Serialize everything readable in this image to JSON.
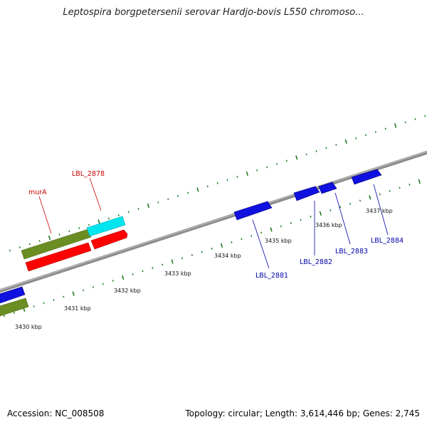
{
  "title": "Leptospira borgpetersenii serovar Hardjo-bovis L550 chromoso...",
  "footer": {
    "accession": "Accession: NC_008508",
    "summary": "Topology: circular; Length: 3,614,446 bp; Genes: 2,745"
  },
  "colors": {
    "backbone": "#8c8c8c",
    "tick": "#1f7a1f",
    "forward_label": "#cc0000",
    "reverse_label": "#0000aa",
    "gene_red": "#ff0000",
    "gene_olive": "#6b8e23",
    "gene_cyan": "#00e5ee",
    "gene_blue": "#1010e0"
  },
  "scale": {
    "kbp_labels": [
      "3430 kbp",
      "3431 kbp",
      "3432 kbp",
      "3433 kbp",
      "3434 kbp",
      "3435 kbp",
      "3436 kbp",
      "3437 kbp"
    ]
  },
  "genes": {
    "labeled": [
      {
        "name": "murA",
        "strand": "forward"
      },
      {
        "name": "LBL_2878",
        "strand": "forward"
      },
      {
        "name": "LBL_2881",
        "strand": "reverse"
      },
      {
        "name": "LBL_2882",
        "strand": "reverse"
      },
      {
        "name": "LBL_2883",
        "strand": "reverse"
      },
      {
        "name": "LBL_2884",
        "strand": "reverse"
      }
    ]
  }
}
